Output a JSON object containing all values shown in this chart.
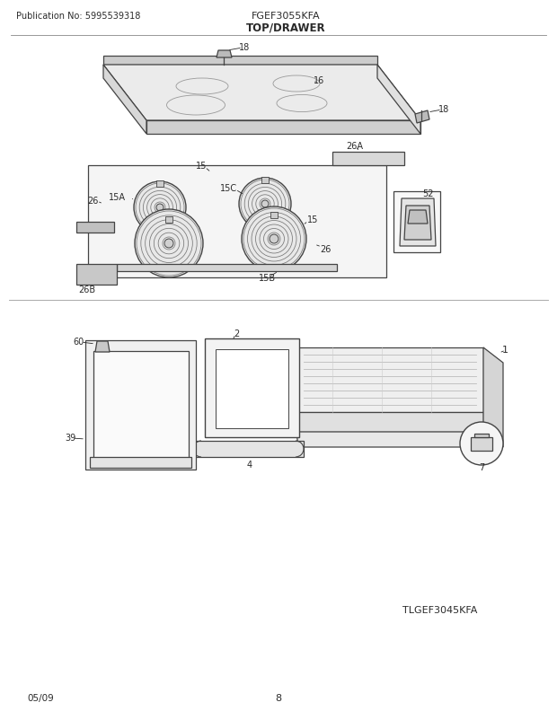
{
  "pub_no": "Publication No: 5995539318",
  "model": "FGEF3055KFA",
  "section": "TOP/DRAWER",
  "date": "05/09",
  "page": "8",
  "alt_model": "TLGEF3045KFA",
  "bg_color": "#ffffff",
  "text_color": "#2a2a2a",
  "line_color": "#444444"
}
